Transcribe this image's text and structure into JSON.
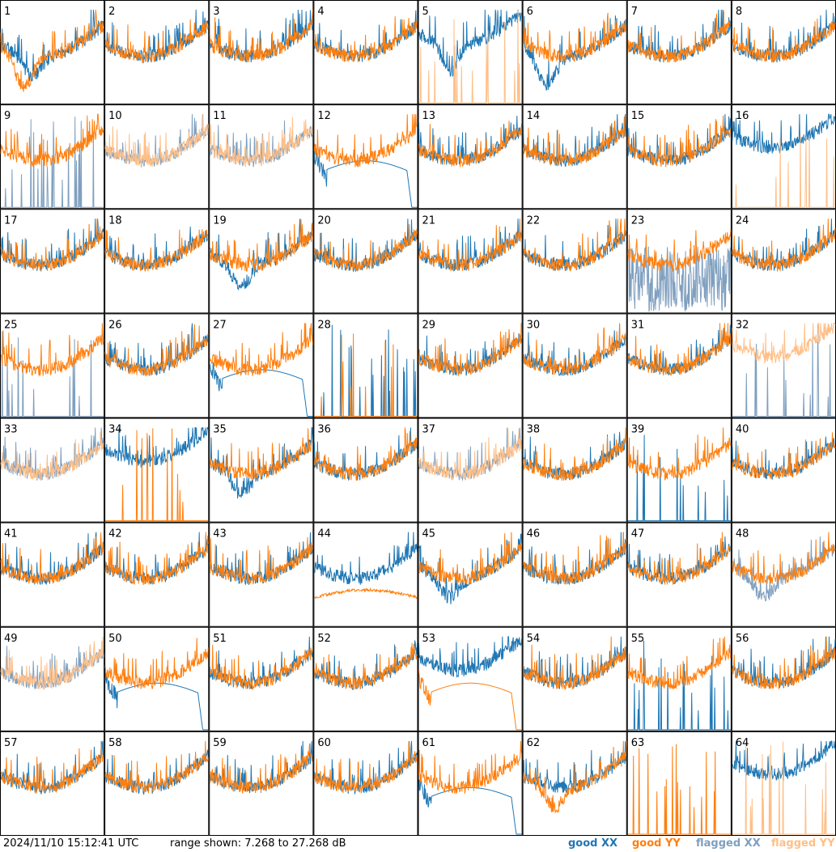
{
  "chart_data": {
    "type": "line",
    "title": "",
    "grid": {
      "rows": 8,
      "cols": 8
    },
    "ylim": [
      7.268,
      27.268
    ],
    "panels": [
      {
        "label": "1",
        "xx": "good",
        "yy": "good",
        "xx_mode": "dip",
        "yy_mode": "dip_deep"
      },
      {
        "label": "2",
        "xx": "good",
        "yy": "good",
        "xx_mode": "normal",
        "yy_mode": "normal"
      },
      {
        "label": "3",
        "xx": "good",
        "yy": "good",
        "xx_mode": "normal",
        "yy_mode": "normal"
      },
      {
        "label": "4",
        "xx": "good",
        "yy": "good",
        "xx_mode": "normal",
        "yy_mode": "normal"
      },
      {
        "label": "5",
        "xx": "good",
        "yy": "flagged",
        "xx_mode": "high_dip",
        "yy_mode": "spikes"
      },
      {
        "label": "6",
        "xx": "good",
        "yy": "good",
        "xx_mode": "dip_deep",
        "yy_mode": "normal"
      },
      {
        "label": "7",
        "xx": "good",
        "yy": "good",
        "xx_mode": "normal",
        "yy_mode": "normal"
      },
      {
        "label": "8",
        "xx": "good",
        "yy": "good",
        "xx_mode": "normal",
        "yy_mode": "normal"
      },
      {
        "label": "9",
        "xx": "flagged",
        "yy": "good",
        "xx_mode": "spikes",
        "yy_mode": "normal"
      },
      {
        "label": "10",
        "xx": "flagged",
        "yy": "flagged",
        "xx_mode": "normal",
        "yy_mode": "normal"
      },
      {
        "label": "11",
        "xx": "flagged",
        "yy": "flagged",
        "xx_mode": "normal",
        "yy_mode": "normal"
      },
      {
        "label": "12",
        "xx": "good",
        "yy": "good",
        "xx_mode": "smooth_drop",
        "yy_mode": "normal"
      },
      {
        "label": "13",
        "xx": "good",
        "yy": "good",
        "xx_mode": "normal",
        "yy_mode": "normal"
      },
      {
        "label": "14",
        "xx": "good",
        "yy": "good",
        "xx_mode": "normal",
        "yy_mode": "normal"
      },
      {
        "label": "15",
        "xx": "good",
        "yy": "good",
        "xx_mode": "normal",
        "yy_mode": "normal"
      },
      {
        "label": "16",
        "xx": "good",
        "yy": "flagged",
        "xx_mode": "high",
        "yy_mode": "spikes"
      },
      {
        "label": "17",
        "xx": "good",
        "yy": "good",
        "xx_mode": "normal",
        "yy_mode": "normal"
      },
      {
        "label": "18",
        "xx": "good",
        "yy": "good",
        "xx_mode": "normal",
        "yy_mode": "normal"
      },
      {
        "label": "19",
        "xx": "good",
        "yy": "good",
        "xx_mode": "dip",
        "yy_mode": "normal"
      },
      {
        "label": "20",
        "xx": "good",
        "yy": "good",
        "xx_mode": "normal",
        "yy_mode": "normal"
      },
      {
        "label": "21",
        "xx": "good",
        "yy": "good",
        "xx_mode": "normal",
        "yy_mode": "normal"
      },
      {
        "label": "22",
        "xx": "good",
        "yy": "good",
        "xx_mode": "normal",
        "yy_mode": "normal"
      },
      {
        "label": "23",
        "xx": "flagged",
        "yy": "good",
        "xx_mode": "noisy",
        "yy_mode": "normal"
      },
      {
        "label": "24",
        "xx": "good",
        "yy": "good",
        "xx_mode": "normal",
        "yy_mode": "normal"
      },
      {
        "label": "25",
        "xx": "flagged",
        "yy": "good",
        "xx_mode": "spikes",
        "yy_mode": "normal"
      },
      {
        "label": "26",
        "xx": "good",
        "yy": "good",
        "xx_mode": "normal",
        "yy_mode": "normal"
      },
      {
        "label": "27",
        "xx": "good",
        "yy": "good",
        "xx_mode": "smooth_drop",
        "yy_mode": "normal"
      },
      {
        "label": "28",
        "xx": "good",
        "yy": "good",
        "xx_mode": "spikes",
        "yy_mode": "spikes"
      },
      {
        "label": "29",
        "xx": "good",
        "yy": "good",
        "xx_mode": "normal",
        "yy_mode": "normal"
      },
      {
        "label": "30",
        "xx": "good",
        "yy": "good",
        "xx_mode": "normal",
        "yy_mode": "normal"
      },
      {
        "label": "31",
        "xx": "good",
        "yy": "good",
        "xx_mode": "normal",
        "yy_mode": "normal"
      },
      {
        "label": "32",
        "xx": "flagged",
        "yy": "flagged",
        "xx_mode": "spikes",
        "yy_mode": "high"
      },
      {
        "label": "33",
        "xx": "flagged",
        "yy": "flagged",
        "xx_mode": "normal",
        "yy_mode": "normal"
      },
      {
        "label": "34",
        "xx": "good",
        "yy": "good",
        "xx_mode": "high",
        "yy_mode": "spikes"
      },
      {
        "label": "35",
        "xx": "good",
        "yy": "good",
        "xx_mode": "dip",
        "yy_mode": "normal"
      },
      {
        "label": "36",
        "xx": "good",
        "yy": "good",
        "xx_mode": "normal",
        "yy_mode": "normal"
      },
      {
        "label": "37",
        "xx": "flagged",
        "yy": "flagged",
        "xx_mode": "normal",
        "yy_mode": "normal"
      },
      {
        "label": "38",
        "xx": "good",
        "yy": "good",
        "xx_mode": "normal",
        "yy_mode": "normal"
      },
      {
        "label": "39",
        "xx": "good",
        "yy": "good",
        "xx_mode": "spikes",
        "yy_mode": "normal"
      },
      {
        "label": "40",
        "xx": "good",
        "yy": "good",
        "xx_mode": "normal",
        "yy_mode": "normal"
      },
      {
        "label": "41",
        "xx": "good",
        "yy": "good",
        "xx_mode": "normal",
        "yy_mode": "normal"
      },
      {
        "label": "42",
        "xx": "good",
        "yy": "good",
        "xx_mode": "normal",
        "yy_mode": "normal"
      },
      {
        "label": "43",
        "xx": "good",
        "yy": "good",
        "xx_mode": "normal",
        "yy_mode": "normal"
      },
      {
        "label": "44",
        "xx": "good",
        "yy": "good",
        "xx_mode": "normal",
        "yy_mode": "smooth_low"
      },
      {
        "label": "45",
        "xx": "good",
        "yy": "good",
        "xx_mode": "dip",
        "yy_mode": "normal"
      },
      {
        "label": "46",
        "xx": "good",
        "yy": "good",
        "xx_mode": "normal",
        "yy_mode": "normal"
      },
      {
        "label": "47",
        "xx": "good",
        "yy": "good",
        "xx_mode": "normal",
        "yy_mode": "normal"
      },
      {
        "label": "48",
        "xx": "flagged",
        "yy": "good",
        "xx_mode": "dip",
        "yy_mode": "normal"
      },
      {
        "label": "49",
        "xx": "flagged",
        "yy": "flagged",
        "xx_mode": "normal",
        "yy_mode": "normal"
      },
      {
        "label": "50",
        "xx": "good",
        "yy": "good",
        "xx_mode": "smooth_drop",
        "yy_mode": "normal"
      },
      {
        "label": "51",
        "xx": "good",
        "yy": "good",
        "xx_mode": "normal",
        "yy_mode": "normal"
      },
      {
        "label": "52",
        "xx": "good",
        "yy": "good",
        "xx_mode": "normal",
        "yy_mode": "normal"
      },
      {
        "label": "53",
        "xx": "good",
        "yy": "good",
        "xx_mode": "high",
        "yy_mode": "smooth_drop"
      },
      {
        "label": "54",
        "xx": "good",
        "yy": "good",
        "xx_mode": "normal",
        "yy_mode": "normal"
      },
      {
        "label": "55",
        "xx": "good",
        "yy": "good",
        "xx_mode": "spikes",
        "yy_mode": "normal"
      },
      {
        "label": "56",
        "xx": "good",
        "yy": "good",
        "xx_mode": "normal",
        "yy_mode": "normal"
      },
      {
        "label": "57",
        "xx": "good",
        "yy": "good",
        "xx_mode": "normal",
        "yy_mode": "normal"
      },
      {
        "label": "58",
        "xx": "good",
        "yy": "good",
        "xx_mode": "normal",
        "yy_mode": "normal"
      },
      {
        "label": "59",
        "xx": "good",
        "yy": "good",
        "xx_mode": "normal",
        "yy_mode": "normal"
      },
      {
        "label": "60",
        "xx": "good",
        "yy": "good",
        "xx_mode": "normal",
        "yy_mode": "normal"
      },
      {
        "label": "61",
        "xx": "good",
        "yy": "good",
        "xx_mode": "smooth_drop",
        "yy_mode": "normal"
      },
      {
        "label": "62",
        "xx": "good",
        "yy": "good",
        "xx_mode": "normal",
        "yy_mode": "dip"
      },
      {
        "label": "63",
        "xx": "good",
        "yy": "good",
        "xx_mode": "none",
        "yy_mode": "spikes"
      },
      {
        "label": "64",
        "xx": "good",
        "yy": "flagged",
        "xx_mode": "high",
        "yy_mode": "spikes"
      }
    ]
  },
  "footer": {
    "timestamp": "2024/11/10 15:12:41 UTC",
    "range_text": "range shown: 7.268 to 27.268 dB"
  },
  "legend": [
    {
      "label": "good XX",
      "color": "#1f77b4"
    },
    {
      "label": "good YY",
      "color": "#ff7f0e"
    },
    {
      "label": "flagged XX",
      "color": "#7f9fbf"
    },
    {
      "label": "flagged YY",
      "color": "#ffbf87"
    }
  ]
}
